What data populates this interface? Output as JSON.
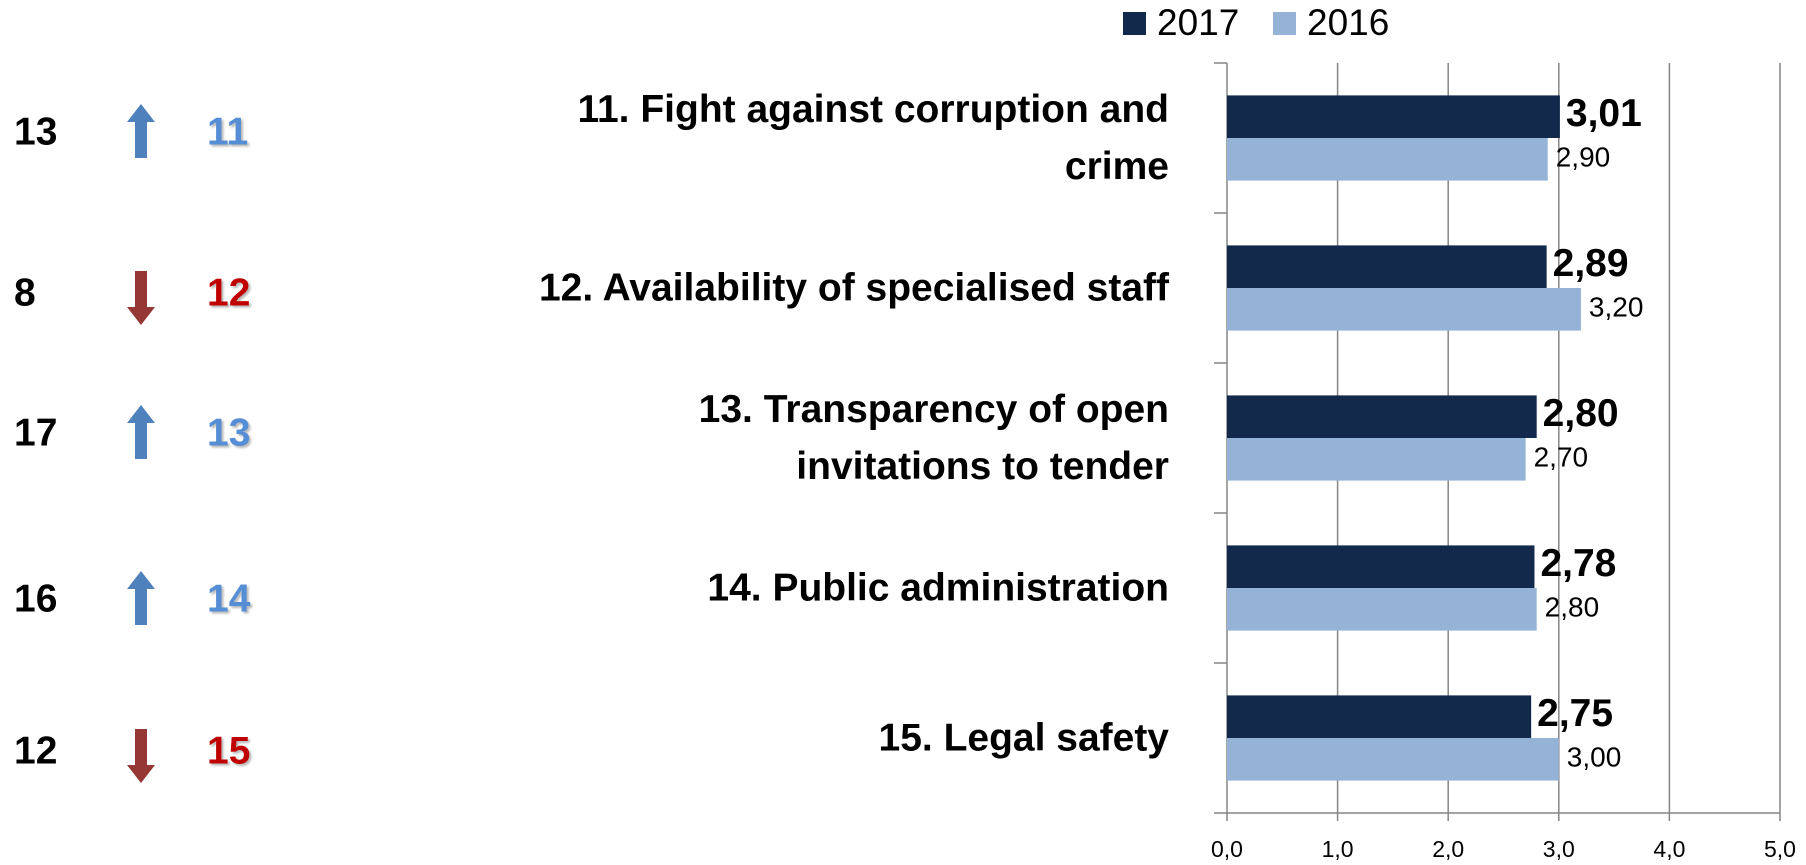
{
  "chart_data": {
    "type": "bar",
    "orientation": "horizontal",
    "categories": [
      [
        "11. Fight against corruption and",
        "crime"
      ],
      [
        "12. Availability of specialised staff"
      ],
      [
        "13. Transparency of open",
        "invitations to tender"
      ],
      [
        "14. Public administration"
      ],
      [
        "15. Legal safety"
      ]
    ],
    "series": [
      {
        "name": "2017",
        "color": "#13294b",
        "values": [
          3.01,
          2.89,
          2.8,
          2.78,
          2.75
        ],
        "value_labels": [
          "3,01",
          "2,89",
          "2,80",
          "2,78",
          "2,75"
        ]
      },
      {
        "name": "2016",
        "color": "#95b3d7",
        "values": [
          2.9,
          3.2,
          2.7,
          2.8,
          3.0
        ],
        "value_labels": [
          "2,90",
          "3,20",
          "2,70",
          "2,80",
          "3,00"
        ]
      }
    ],
    "xlim": [
      0,
      5
    ],
    "xticks": [
      {
        "value": 0,
        "label": "0,0"
      },
      {
        "value": 1,
        "label": "1,0"
      },
      {
        "value": 2,
        "label": "2,0"
      },
      {
        "value": 3,
        "label": "3,0"
      },
      {
        "value": 4,
        "label": "4,0"
      },
      {
        "value": 5,
        "label": "5,0"
      }
    ],
    "grid": true,
    "legend": "top",
    "ranks": [
      {
        "previous": 13,
        "direction": "up",
        "current": 11
      },
      {
        "previous": 8,
        "direction": "down",
        "current": 12
      },
      {
        "previous": 17,
        "direction": "up",
        "current": 13
      },
      {
        "previous": 16,
        "direction": "up",
        "current": 14
      },
      {
        "previous": 12,
        "direction": "down",
        "current": 15
      }
    ]
  }
}
